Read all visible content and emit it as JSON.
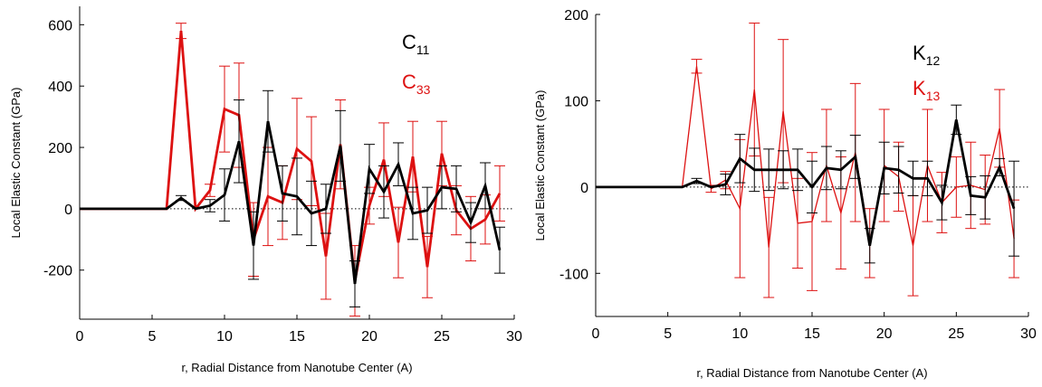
{
  "chart_data": [
    {
      "type": "line",
      "ylabel": "Local Elastic Constant (GPa)",
      "xlabel": "r, Radial Distance from Nanotube Center (A)",
      "xlim": [
        0,
        30
      ],
      "ylim": [
        -360,
        660
      ],
      "x_ticks": [
        0,
        5,
        10,
        15,
        20,
        25,
        30
      ],
      "y_ticks": [
        -200,
        0,
        200,
        400,
        600
      ],
      "x": [
        0,
        1,
        2,
        3,
        4,
        5,
        6,
        7,
        8,
        9,
        10,
        11,
        12,
        13,
        14,
        15,
        16,
        17,
        18,
        19,
        20,
        21,
        22,
        23,
        24,
        25,
        26,
        27,
        28,
        29
      ],
      "zero_line": true,
      "legend": {
        "position": "top-right"
      },
      "series": [
        {
          "name": "C11",
          "label_main": "C",
          "label_sub": "11",
          "color": "#000000",
          "stroke": "thick",
          "values": [
            0,
            0,
            0,
            0,
            0,
            0,
            0,
            35,
            0,
            10,
            45,
            220,
            -120,
            285,
            50,
            40,
            -15,
            0,
            205,
            -245,
            130,
            55,
            145,
            -15,
            -5,
            70,
            65,
            -45,
            75,
            -135
          ],
          "errors": [
            0,
            0,
            0,
            0,
            0,
            0,
            0,
            8,
            0,
            20,
            85,
            135,
            110,
            100,
            90,
            125,
            105,
            80,
            115,
            75,
            80,
            85,
            70,
            85,
            75,
            70,
            75,
            65,
            75,
            75
          ]
        },
        {
          "name": "C33",
          "label_main": "C",
          "label_sub": "33",
          "color": "#dd1111",
          "stroke": "thick",
          "values": [
            0,
            0,
            0,
            0,
            0,
            0,
            0,
            580,
            0,
            60,
            325,
            305,
            -100,
            40,
            20,
            195,
            155,
            -155,
            210,
            -235,
            10,
            160,
            -110,
            170,
            -190,
            180,
            -5,
            -65,
            -35,
            50
          ],
          "errors": [
            0,
            0,
            0,
            0,
            0,
            0,
            0,
            25,
            0,
            20,
            140,
            170,
            120,
            160,
            120,
            165,
            145,
            140,
            145,
            115,
            60,
            120,
            115,
            115,
            100,
            105,
            80,
            105,
            80,
            90
          ]
        }
      ]
    },
    {
      "type": "line",
      "ylabel": "Local Elastic Constant (GPa)",
      "xlabel": "r, Radial Distance from Nanotube Center (A)",
      "xlim": [
        0,
        30
      ],
      "ylim": [
        -150,
        200
      ],
      "x_ticks": [
        0,
        5,
        10,
        15,
        20,
        25,
        30
      ],
      "y_ticks": [
        -100,
        0,
        100,
        200
      ],
      "x": [
        0,
        1,
        2,
        3,
        4,
        5,
        6,
        7,
        8,
        9,
        10,
        11,
        12,
        13,
        14,
        15,
        16,
        17,
        18,
        19,
        20,
        21,
        22,
        23,
        24,
        25,
        26,
        27,
        28,
        29
      ],
      "zero_line": true,
      "legend": {
        "position": "top-right"
      },
      "series": [
        {
          "name": "K12",
          "label_main": "K",
          "label_sub": "12",
          "color": "#000000",
          "stroke": "thick",
          "values": [
            0,
            0,
            0,
            0,
            0,
            0,
            0,
            7,
            0,
            3,
            33,
            20,
            20,
            20,
            20,
            0,
            22,
            20,
            35,
            -68,
            22,
            20,
            10,
            10,
            -18,
            78,
            -10,
            -12,
            23,
            -25
          ],
          "errors": [
            0,
            0,
            0,
            0,
            0,
            0,
            0,
            3,
            0,
            12,
            28,
            25,
            24,
            22,
            24,
            30,
            25,
            22,
            25,
            20,
            30,
            27,
            20,
            20,
            20,
            17,
            22,
            25,
            10,
            55
          ]
        },
        {
          "name": "K13",
          "label_main": "K",
          "label_sub": "13",
          "color": "#dd1111",
          "stroke": "thin",
          "values": [
            0,
            0,
            0,
            0,
            0,
            0,
            0,
            140,
            -2,
            8,
            -25,
            113,
            -70,
            88,
            -42,
            -40,
            25,
            -30,
            40,
            -65,
            25,
            12,
            -68,
            25,
            -18,
            0,
            2,
            -3,
            68,
            -60
          ],
          "errors": [
            0,
            0,
            0,
            0,
            0,
            0,
            0,
            8,
            4,
            10,
            80,
            77,
            58,
            83,
            52,
            80,
            65,
            65,
            80,
            40,
            65,
            40,
            58,
            65,
            35,
            35,
            50,
            40,
            45,
            45
          ]
        }
      ]
    }
  ]
}
